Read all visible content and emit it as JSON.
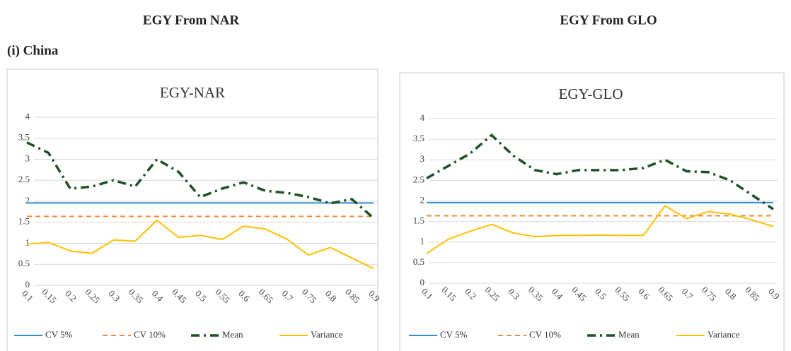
{
  "headers": [
    "EGY From NAR",
    "EGY From GLO"
  ],
  "section": "(i) China",
  "chart_data": [
    {
      "type": "line",
      "title": "EGY-NAR",
      "categories": [
        "0.1",
        "0.15",
        "0.2",
        "0.25",
        "0.3",
        "0.35",
        "0.4",
        "0.45",
        "0.5",
        "0.55",
        "0.6",
        "0.65",
        "0.7",
        "0.75",
        "0.8",
        "0.85",
        "0.9"
      ],
      "ylim": [
        0,
        4
      ],
      "yticks": [
        0,
        0.5,
        1,
        1.5,
        2,
        2.5,
        3,
        3.5,
        4
      ],
      "grid": true,
      "legend": "bottom",
      "series": [
        {
          "name": "CV 5%",
          "color": "#2e8bd0",
          "style": "solid",
          "values": [
            1.96,
            1.96,
            1.96,
            1.96,
            1.96,
            1.96,
            1.96,
            1.96,
            1.96,
            1.96,
            1.96,
            1.96,
            1.96,
            1.96,
            1.96,
            1.96,
            1.96
          ]
        },
        {
          "name": "CV 10%",
          "color": "#f08a3c",
          "style": "dashed",
          "values": [
            1.64,
            1.64,
            1.64,
            1.64,
            1.64,
            1.64,
            1.64,
            1.64,
            1.64,
            1.64,
            1.64,
            1.64,
            1.64,
            1.64,
            1.64,
            1.64,
            1.64
          ]
        },
        {
          "name": "Mean",
          "color": "#1e5128",
          "style": "dashdot",
          "values": [
            3.4,
            3.15,
            2.3,
            2.35,
            2.5,
            2.35,
            3.0,
            2.7,
            2.1,
            2.3,
            2.45,
            2.25,
            2.2,
            2.1,
            1.95,
            2.05,
            1.6
          ]
        },
        {
          "name": "Variance",
          "color": "#ffc000",
          "style": "solid",
          "values": [
            0.98,
            1.02,
            0.82,
            0.76,
            1.08,
            1.05,
            1.55,
            1.14,
            1.19,
            1.09,
            1.41,
            1.34,
            1.1,
            0.72,
            0.9,
            0.65,
            0.4
          ]
        }
      ]
    },
    {
      "type": "line",
      "title": "EGY-GLO",
      "categories": [
        "0.1",
        "0.15",
        "0.2",
        "0.25",
        "0.3",
        "0.35",
        "0.4",
        "0.45",
        "0.5",
        "0.55",
        "0.6",
        "0.65",
        "0.7",
        "0.75",
        "0.8",
        "0.85",
        "0.9"
      ],
      "ylim": [
        0,
        4
      ],
      "yticks": [
        0,
        0.5,
        1,
        1.5,
        2,
        2.5,
        3,
        3.5,
        4
      ],
      "grid": true,
      "legend": "bottom",
      "series": [
        {
          "name": "CV 5%",
          "color": "#2e8bd0",
          "style": "solid",
          "values": [
            1.96,
            1.96,
            1.96,
            1.96,
            1.96,
            1.96,
            1.96,
            1.96,
            1.96,
            1.96,
            1.96,
            1.96,
            1.96,
            1.96,
            1.96,
            1.96,
            1.96
          ]
        },
        {
          "name": "CV 10%",
          "color": "#f08a3c",
          "style": "dashed",
          "values": [
            1.64,
            1.64,
            1.64,
            1.64,
            1.64,
            1.64,
            1.64,
            1.64,
            1.64,
            1.64,
            1.64,
            1.64,
            1.64,
            1.64,
            1.64,
            1.64,
            1.64
          ]
        },
        {
          "name": "Mean",
          "color": "#1e5128",
          "style": "dashdot",
          "values": [
            2.55,
            2.85,
            3.15,
            3.6,
            3.1,
            2.75,
            2.65,
            2.75,
            2.75,
            2.75,
            2.8,
            3.0,
            2.72,
            2.7,
            2.5,
            2.15,
            1.8
          ]
        },
        {
          "name": "Variance",
          "color": "#ffc000",
          "style": "solid",
          "values": [
            0.72,
            1.07,
            1.26,
            1.43,
            1.22,
            1.13,
            1.16,
            1.16,
            1.17,
            1.16,
            1.16,
            1.88,
            1.57,
            1.74,
            1.68,
            1.54,
            1.38
          ]
        }
      ]
    }
  ]
}
